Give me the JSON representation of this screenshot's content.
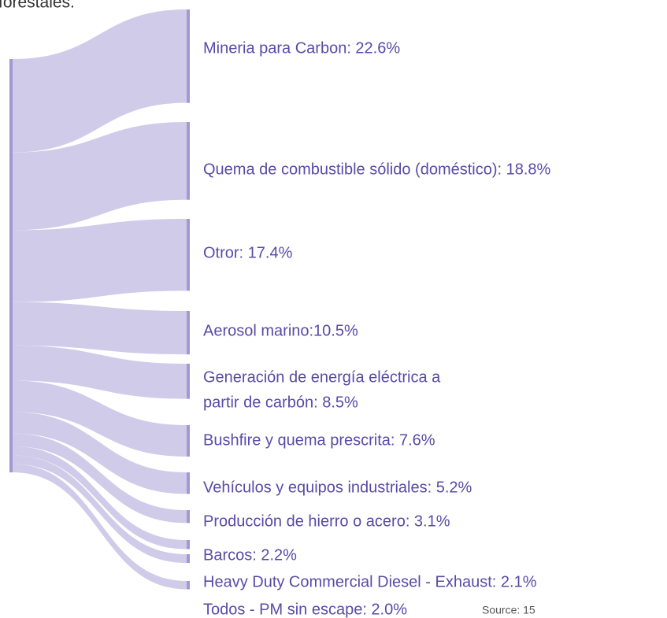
{
  "intro_text": "forestales.",
  "chart_data": {
    "type": "sankey",
    "categories": [
      "Mineria para Carbon: 22.6%",
      "Quema de combustible sólido (doméstico): 18.8%",
      "Otror: 17.4%",
      "Aerosol marino:10.5%",
      [
        "Generación de energía eléctrica a",
        "partir de carbón: 8.5%"
      ],
      "Bushfire y quema prescrita: 7.6%",
      "Vehículos y equipos industriales: 5.2%",
      "Producción de hierro o acero: 3.1%",
      "Barcos: 2.2%",
      "Heavy Duty Commercial Diesel  - Exhaust: 2.1%",
      "Todos - PM sin escape: 2.0%"
    ],
    "values": [
      22.6,
      18.8,
      17.4,
      10.5,
      8.5,
      7.6,
      5.2,
      3.1,
      2.2,
      2.1,
      2.0
    ],
    "link_color": "#cdc8e8",
    "node_color": "#a397d4",
    "source_note": "Source: 15"
  }
}
